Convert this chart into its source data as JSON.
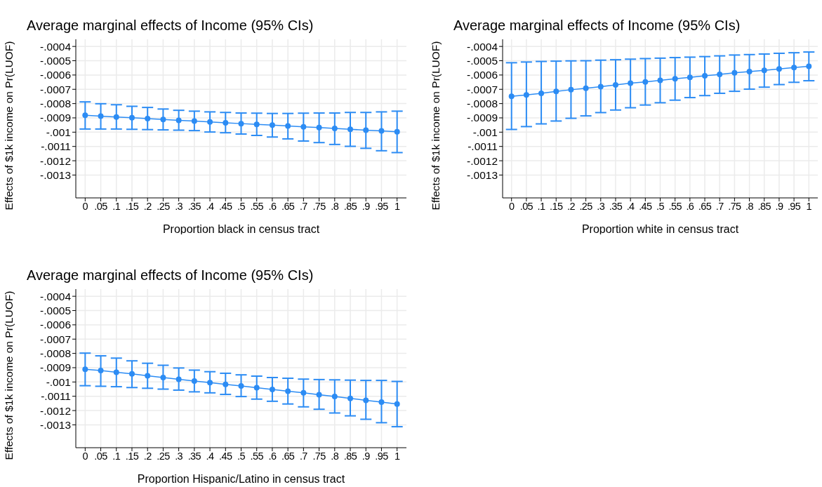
{
  "chart_data": [
    {
      "type": "line",
      "title": "Average marginal effects of Income (95% CIs)",
      "xlabel": "Proportion black in census tract",
      "ylabel": "Effects of $1k income on Pr(LUOF)",
      "x": [
        0,
        0.05,
        0.1,
        0.15,
        0.2,
        0.25,
        0.3,
        0.35,
        0.4,
        0.45,
        0.5,
        0.55,
        0.6,
        0.65,
        0.7,
        0.75,
        0.8,
        0.85,
        0.9,
        0.95,
        1
      ],
      "values": [
        -0.000882,
        -0.000888,
        -0.000894,
        -0.000899,
        -0.000905,
        -0.000911,
        -0.000917,
        -0.000922,
        -0.000928,
        -0.000934,
        -0.00094,
        -0.000945,
        -0.000951,
        -0.000957,
        -0.000963,
        -0.000968,
        -0.000974,
        -0.00098,
        -0.000986,
        -0.000991,
        -0.000997
      ],
      "errors": [
        [
          -0.000978,
          -0.000788
        ],
        [
          -0.000978,
          -0.000801
        ],
        [
          -0.000978,
          -0.000808
        ],
        [
          -0.00098,
          -0.000819
        ],
        [
          -0.000982,
          -0.000827
        ],
        [
          -0.000984,
          -0.000838
        ],
        [
          -0.000986,
          -0.000847
        ],
        [
          -0.000989,
          -0.000853
        ],
        [
          -0.000999,
          -0.000858
        ],
        [
          -0.001004,
          -0.000862
        ],
        [
          -0.001013,
          -0.000866
        ],
        [
          -0.001023,
          -0.000867
        ],
        [
          -0.001034,
          -0.000869
        ],
        [
          -0.001047,
          -0.000869
        ],
        [
          -0.001062,
          -0.000867
        ],
        [
          -0.001073,
          -0.000866
        ],
        [
          -0.001086,
          -0.000866
        ],
        [
          -0.001099,
          -0.000862
        ],
        [
          -0.001113,
          -0.000862
        ],
        [
          -0.00113,
          -0.000858
        ],
        [
          -0.001143,
          -0.000853
        ]
      ],
      "color": "#2c8cf4",
      "marker": "circle",
      "grid": true,
      "xlim": [
        -0.03,
        1.03
      ],
      "ylim": [
        -0.00146,
        -0.00035
      ],
      "xticks": [
        {
          "value": 0,
          "label": "0"
        },
        {
          "value": 0.05,
          "label": ".05"
        },
        {
          "value": 0.1,
          "label": ".1"
        },
        {
          "value": 0.15,
          "label": ".15"
        },
        {
          "value": 0.2,
          "label": ".2"
        },
        {
          "value": 0.25,
          "label": ".25"
        },
        {
          "value": 0.3,
          "label": ".3"
        },
        {
          "value": 0.35,
          "label": ".35"
        },
        {
          "value": 0.4,
          "label": ".4"
        },
        {
          "value": 0.45,
          "label": ".45"
        },
        {
          "value": 0.5,
          "label": ".5"
        },
        {
          "value": 0.55,
          "label": ".55"
        },
        {
          "value": 0.6,
          "label": ".6"
        },
        {
          "value": 0.65,
          "label": ".65"
        },
        {
          "value": 0.7,
          "label": ".7"
        },
        {
          "value": 0.75,
          "label": ".75"
        },
        {
          "value": 0.8,
          "label": ".8"
        },
        {
          "value": 0.85,
          "label": ".85"
        },
        {
          "value": 0.9,
          "label": ".9"
        },
        {
          "value": 0.95,
          "label": ".95"
        },
        {
          "value": 1,
          "label": "1"
        }
      ],
      "yticks": [
        {
          "value": -0.0004,
          "label": "-.0004"
        },
        {
          "value": -0.0005,
          "label": "-.0005"
        },
        {
          "value": -0.0006,
          "label": "-.0006"
        },
        {
          "value": -0.0007,
          "label": "-.0007"
        },
        {
          "value": -0.0008,
          "label": "-.0008"
        },
        {
          "value": -0.0009,
          "label": "-.0009"
        },
        {
          "value": -0.001,
          "label": "-.001"
        },
        {
          "value": -0.0011,
          "label": "-.0011"
        },
        {
          "value": -0.0012,
          "label": "-.0012"
        },
        {
          "value": -0.0013,
          "label": "-.0013"
        }
      ]
    },
    {
      "type": "line",
      "title": "Average marginal effects of Income (95% CIs)",
      "xlabel": "Proportion white in census tract",
      "ylabel": "Effects of $1k income on Pr(LUOF)",
      "x": [
        0,
        0.05,
        0.1,
        0.15,
        0.2,
        0.25,
        0.3,
        0.35,
        0.4,
        0.45,
        0.5,
        0.55,
        0.6,
        0.65,
        0.7,
        0.75,
        0.8,
        0.85,
        0.9,
        0.95,
        1
      ],
      "values": [
        -0.000749,
        -0.000739,
        -0.000728,
        -0.000715,
        -0.000703,
        -0.000692,
        -0.000681,
        -0.000669,
        -0.000657,
        -0.000648,
        -0.000637,
        -0.000626,
        -0.000616,
        -0.000605,
        -0.000596,
        -0.000585,
        -0.000576,
        -0.000567,
        -0.000557,
        -0.000548,
        -0.000539
      ],
      "errors": [
        [
          -0.000981,
          -0.000514
        ],
        [
          -0.000961,
          -0.000509
        ],
        [
          -0.000942,
          -0.000505
        ],
        [
          -0.000922,
          -0.000503
        ],
        [
          -0.000903,
          -0.000501
        ],
        [
          -0.000886,
          -0.0005
        ],
        [
          -0.000863,
          -0.000496
        ],
        [
          -0.000845,
          -0.000493
        ],
        [
          -0.000829,
          -0.000489
        ],
        [
          -0.00081,
          -0.000485
        ],
        [
          -0.000794,
          -0.000482
        ],
        [
          -0.000776,
          -0.000478
        ],
        [
          -0.000758,
          -0.000475
        ],
        [
          -0.000744,
          -0.000471
        ],
        [
          -0.000728,
          -0.000466
        ],
        [
          -0.000714,
          -0.00046
        ],
        [
          -0.000699,
          -0.000457
        ],
        [
          -0.000685,
          -0.000453
        ],
        [
          -0.000667,
          -0.000448
        ],
        [
          -0.000651,
          -0.000444
        ],
        [
          -0.00064,
          -0.000439
        ]
      ],
      "color": "#2c8cf4",
      "marker": "circle",
      "grid": true,
      "xlim": [
        -0.03,
        1.03
      ],
      "ylim": [
        -0.00146,
        -0.00035
      ],
      "xticks": [
        {
          "value": 0,
          "label": "0"
        },
        {
          "value": 0.05,
          "label": ".05"
        },
        {
          "value": 0.1,
          "label": ".1"
        },
        {
          "value": 0.15,
          "label": ".15"
        },
        {
          "value": 0.2,
          "label": ".2"
        },
        {
          "value": 0.25,
          "label": ".25"
        },
        {
          "value": 0.3,
          "label": ".3"
        },
        {
          "value": 0.35,
          "label": ".35"
        },
        {
          "value": 0.4,
          "label": ".4"
        },
        {
          "value": 0.45,
          "label": ".45"
        },
        {
          "value": 0.5,
          "label": ".5"
        },
        {
          "value": 0.55,
          "label": ".55"
        },
        {
          "value": 0.6,
          "label": ".6"
        },
        {
          "value": 0.65,
          "label": ".65"
        },
        {
          "value": 0.7,
          "label": ".7"
        },
        {
          "value": 0.75,
          "label": ".75"
        },
        {
          "value": 0.8,
          "label": ".8"
        },
        {
          "value": 0.85,
          "label": ".85"
        },
        {
          "value": 0.9,
          "label": ".9"
        },
        {
          "value": 0.95,
          "label": ".95"
        },
        {
          "value": 1,
          "label": "1"
        }
      ],
      "yticks": [
        {
          "value": -0.0004,
          "label": "-.0004"
        },
        {
          "value": -0.0005,
          "label": "-.0005"
        },
        {
          "value": -0.0006,
          "label": "-.0006"
        },
        {
          "value": -0.0007,
          "label": "-.0007"
        },
        {
          "value": -0.0008,
          "label": "-.0008"
        },
        {
          "value": -0.0009,
          "label": "-.0009"
        },
        {
          "value": -0.001,
          "label": "-.001"
        },
        {
          "value": -0.0011,
          "label": "-.0011"
        },
        {
          "value": -0.0012,
          "label": "-.0012"
        },
        {
          "value": -0.0013,
          "label": "-.0013"
        }
      ]
    },
    {
      "type": "line",
      "title": "Average marginal effects of Income (95% CIs)",
      "xlabel": "Proportion Hispanic/Latino in census tract",
      "ylabel": "Effects of $1k income on Pr(LUOF)",
      "x": [
        0,
        0.05,
        0.1,
        0.15,
        0.2,
        0.25,
        0.3,
        0.35,
        0.4,
        0.45,
        0.5,
        0.55,
        0.6,
        0.65,
        0.7,
        0.75,
        0.8,
        0.85,
        0.9,
        0.95,
        1
      ],
      "values": [
        -0.000911,
        -0.00092,
        -0.000932,
        -0.000943,
        -0.000956,
        -0.000969,
        -0.000981,
        -0.000993,
        -0.001004,
        -0.001017,
        -0.001028,
        -0.00104,
        -0.001052,
        -0.001065,
        -0.001076,
        -0.001089,
        -0.001102,
        -0.001115,
        -0.001128,
        -0.001141,
        -0.001154
      ],
      "errors": [
        [
          -0.001026,
          -0.000798
        ],
        [
          -0.00103,
          -0.000817
        ],
        [
          -0.001033,
          -0.000833
        ],
        [
          -0.001039,
          -0.000852
        ],
        [
          -0.001044,
          -0.000869
        ],
        [
          -0.00105,
          -0.000883
        ],
        [
          -0.001057,
          -0.000902
        ],
        [
          -0.001069,
          -0.000917
        ],
        [
          -0.001076,
          -0.000928
        ],
        [
          -0.001087,
          -0.000939
        ],
        [
          -0.001102,
          -0.00095
        ],
        [
          -0.00112,
          -0.000959
        ],
        [
          -0.001135,
          -0.000969
        ],
        [
          -0.001154,
          -0.000974
        ],
        [
          -0.001174,
          -0.00098
        ],
        [
          -0.001191,
          -0.000983
        ],
        [
          -0.001217,
          -0.000985
        ],
        [
          -0.001237,
          -0.000987
        ],
        [
          -0.001261,
          -0.000989
        ],
        [
          -0.001285,
          -0.000989
        ],
        [
          -0.001313,
          -0.000996
        ]
      ],
      "color": "#2c8cf4",
      "marker": "circle",
      "grid": true,
      "xlim": [
        -0.03,
        1.03
      ],
      "ylim": [
        -0.00146,
        -0.00035
      ],
      "xticks": [
        {
          "value": 0,
          "label": "0"
        },
        {
          "value": 0.05,
          "label": ".05"
        },
        {
          "value": 0.1,
          "label": ".1"
        },
        {
          "value": 0.15,
          "label": ".15"
        },
        {
          "value": 0.2,
          "label": ".2"
        },
        {
          "value": 0.25,
          "label": ".25"
        },
        {
          "value": 0.3,
          "label": ".3"
        },
        {
          "value": 0.35,
          "label": ".35"
        },
        {
          "value": 0.4,
          "label": ".4"
        },
        {
          "value": 0.45,
          "label": ".45"
        },
        {
          "value": 0.5,
          "label": ".5"
        },
        {
          "value": 0.55,
          "label": ".55"
        },
        {
          "value": 0.6,
          "label": ".6"
        },
        {
          "value": 0.65,
          "label": ".65"
        },
        {
          "value": 0.7,
          "label": ".7"
        },
        {
          "value": 0.75,
          "label": ".75"
        },
        {
          "value": 0.8,
          "label": ".8"
        },
        {
          "value": 0.85,
          "label": ".85"
        },
        {
          "value": 0.9,
          "label": ".9"
        },
        {
          "value": 0.95,
          "label": ".95"
        },
        {
          "value": 1,
          "label": "1"
        }
      ],
      "yticks": [
        {
          "value": -0.0004,
          "label": "-.0004"
        },
        {
          "value": -0.0005,
          "label": "-.0005"
        },
        {
          "value": -0.0006,
          "label": "-.0006"
        },
        {
          "value": -0.0007,
          "label": "-.0007"
        },
        {
          "value": -0.0008,
          "label": "-.0008"
        },
        {
          "value": -0.0009,
          "label": "-.0009"
        },
        {
          "value": -0.001,
          "label": "-.001"
        },
        {
          "value": -0.0011,
          "label": "-.0011"
        },
        {
          "value": -0.0012,
          "label": "-.0012"
        },
        {
          "value": -0.0013,
          "label": "-.0013"
        }
      ]
    }
  ]
}
